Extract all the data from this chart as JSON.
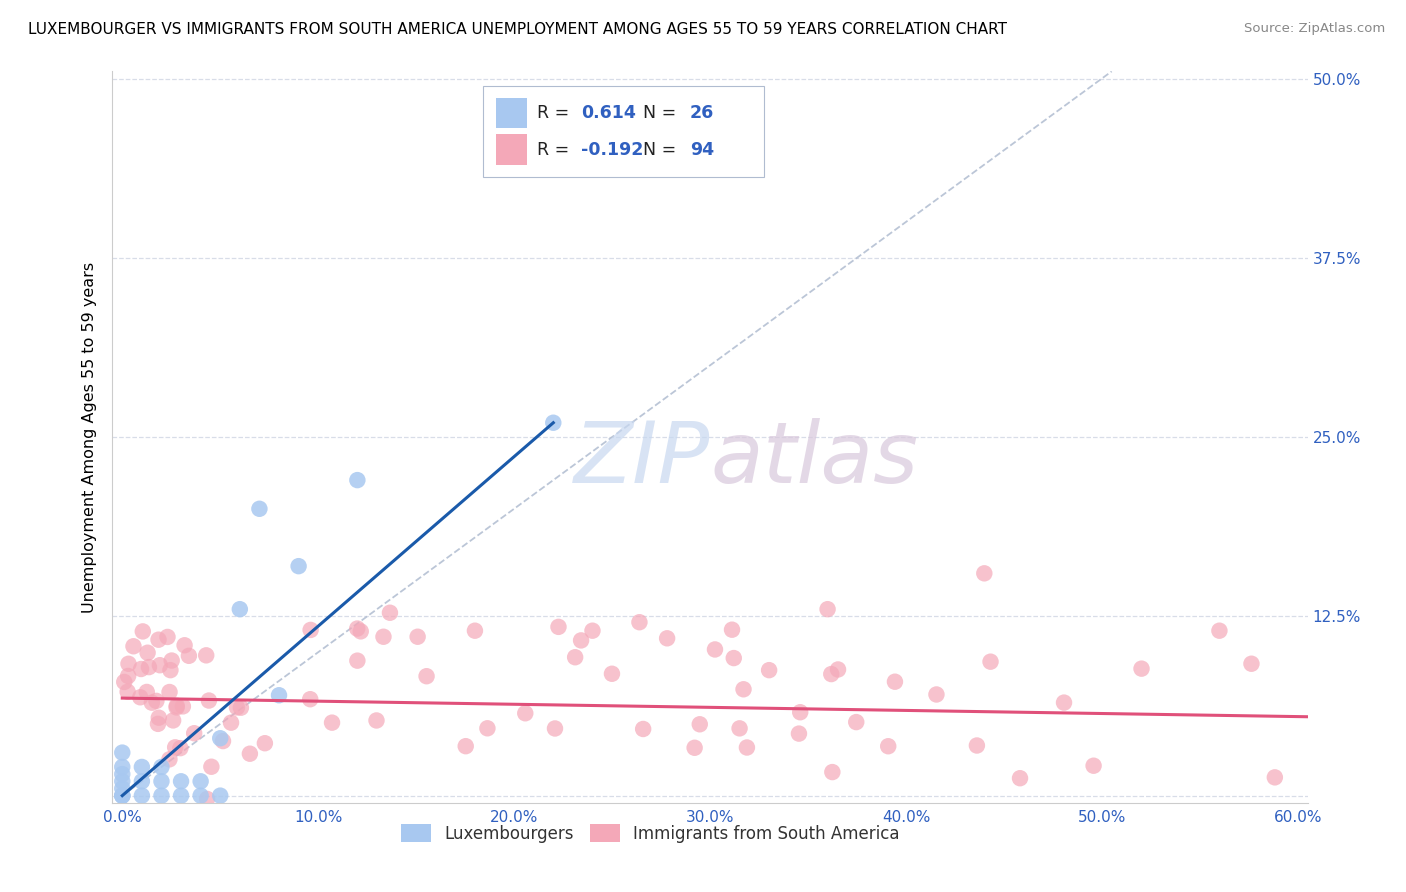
{
  "title": "LUXEMBOURGER VS IMMIGRANTS FROM SOUTH AMERICA UNEMPLOYMENT AMONG AGES 55 TO 59 YEARS CORRELATION CHART",
  "source": "Source: ZipAtlas.com",
  "ylabel": "Unemployment Among Ages 55 to 59 years",
  "xlim": [
    -0.005,
    0.605
  ],
  "ylim": [
    -0.005,
    0.505
  ],
  "xticks": [
    0.0,
    0.1,
    0.2,
    0.3,
    0.4,
    0.5,
    0.6
  ],
  "xticklabels": [
    "0.0%",
    "10.0%",
    "20.0%",
    "30.0%",
    "40.0%",
    "50.0%",
    "60.0%"
  ],
  "yticks": [
    0.0,
    0.125,
    0.25,
    0.375,
    0.5
  ],
  "yticklabels": [
    "",
    "12.5%",
    "25.0%",
    "37.5%",
    "50.0%"
  ],
  "legend_labels": [
    "Luxembourgers",
    "Immigrants from South America"
  ],
  "R_blue": 0.614,
  "N_blue": 26,
  "R_pink": -0.192,
  "N_pink": 94,
  "blue_color": "#a8c8f0",
  "pink_color": "#f4a8b8",
  "blue_line_color": "#1a5aaa",
  "pink_line_color": "#e0507a",
  "ref_line_color": "#b0bcd0",
  "watermark_zip_color": "#c8d8f0",
  "watermark_atlas_color": "#d8c8d8",
  "tick_color": "#3060c0",
  "grid_color": "#d8dde8",
  "blue_scatter_x": [
    0.0,
    0.0,
    0.0,
    0.0,
    0.0,
    0.0,
    0.0,
    0.0,
    0.01,
    0.01,
    0.01,
    0.02,
    0.02,
    0.02,
    0.03,
    0.03,
    0.04,
    0.04,
    0.05,
    0.05,
    0.06,
    0.07,
    0.08,
    0.09,
    0.12,
    0.22
  ],
  "blue_scatter_y": [
    0.0,
    0.0,
    0.0,
    0.005,
    0.01,
    0.015,
    0.02,
    0.03,
    0.0,
    0.01,
    0.02,
    0.0,
    0.01,
    0.02,
    0.0,
    0.01,
    0.0,
    0.01,
    0.0,
    0.04,
    0.13,
    0.2,
    0.07,
    0.16,
    0.22,
    0.26
  ],
  "pink_line_x0": 0.0,
  "pink_line_x1": 0.605,
  "pink_line_y0": 0.068,
  "pink_line_y1": 0.055,
  "blue_line_x0": 0.0,
  "blue_line_x1": 0.22,
  "blue_line_y0": 0.0,
  "blue_line_y1": 0.26
}
